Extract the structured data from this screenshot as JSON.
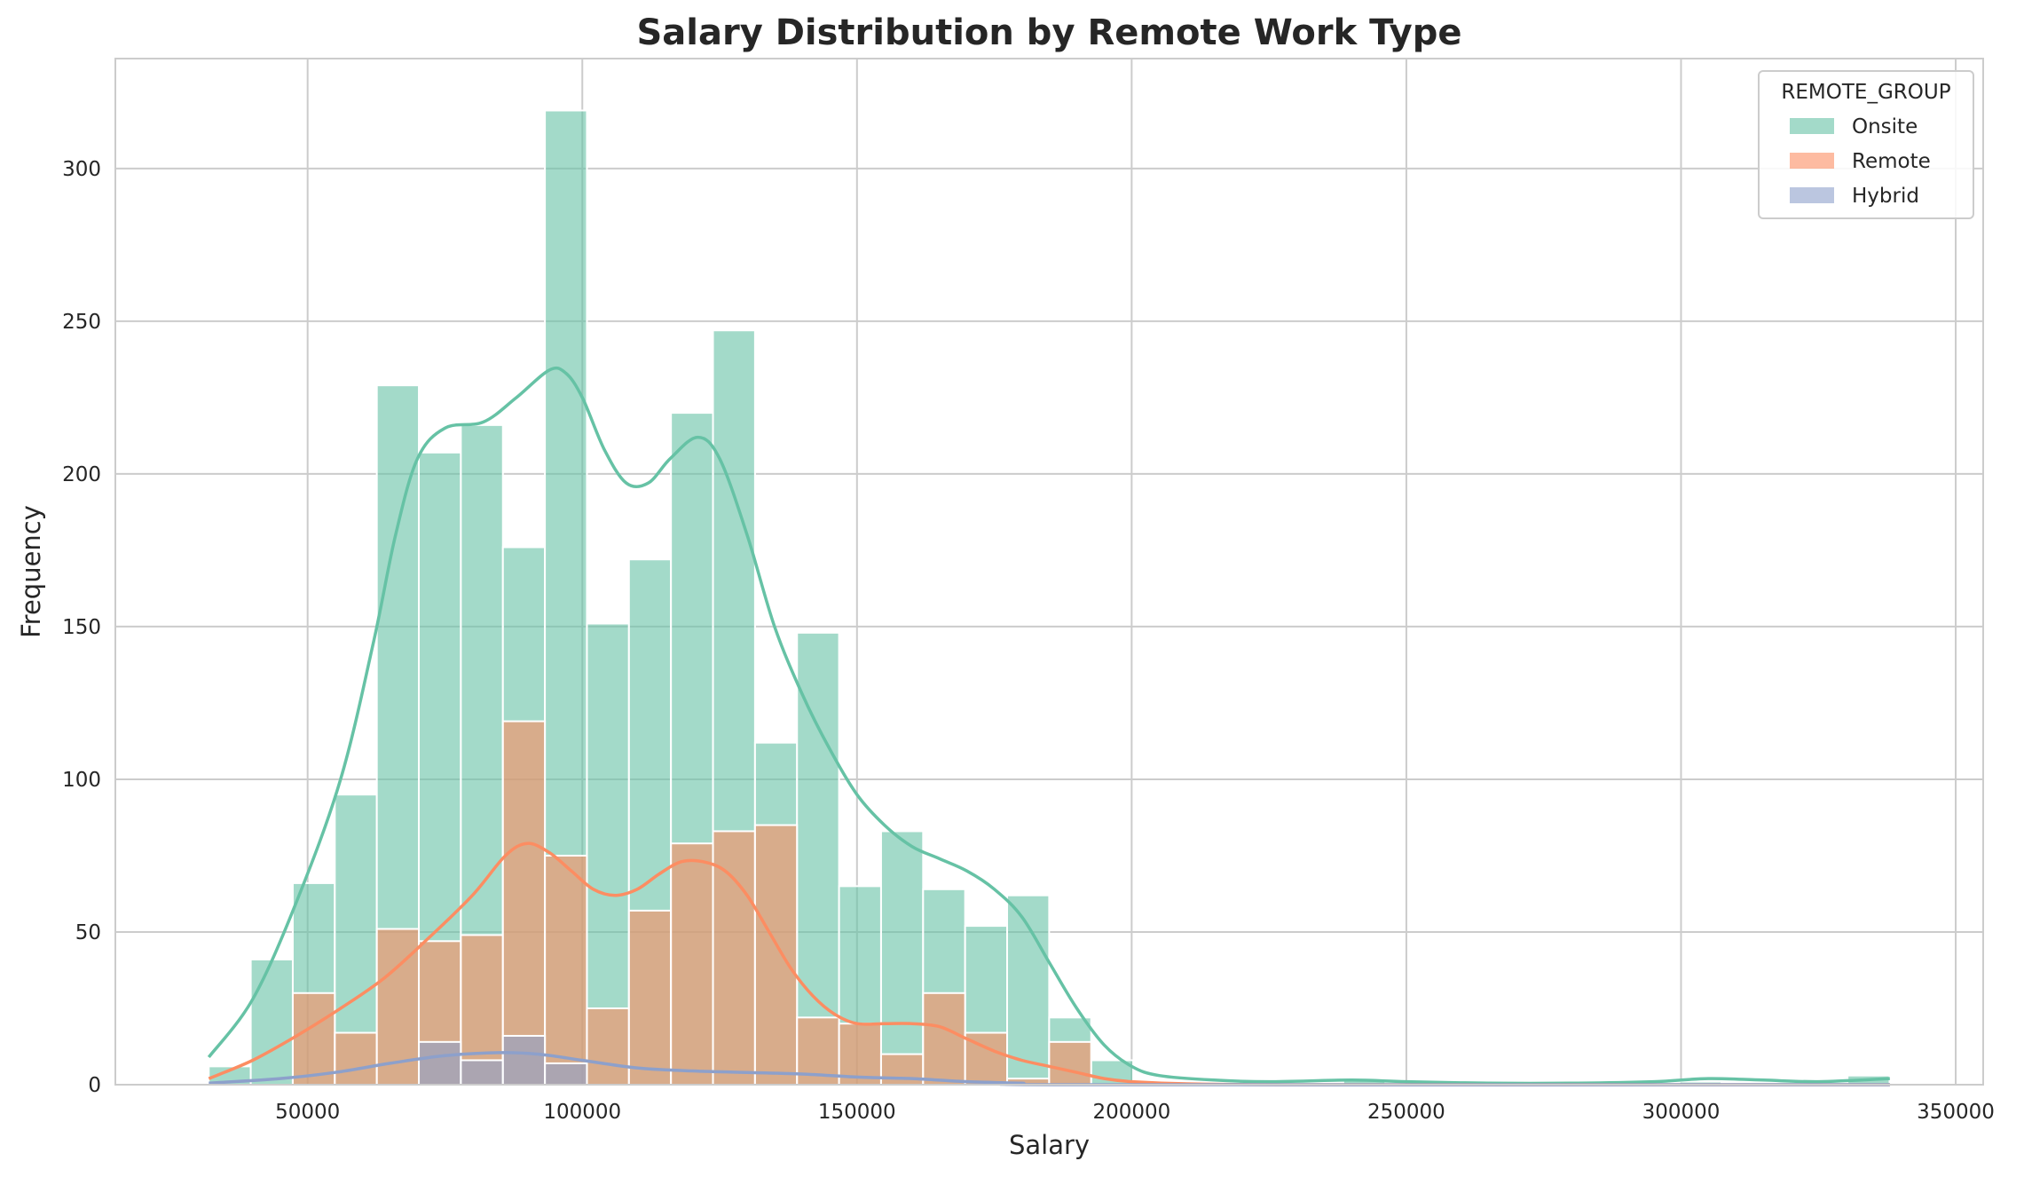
{
  "chart_data": {
    "type": "histogram",
    "title": "Salary Distribution by Remote Work Type",
    "xlabel": "Salary",
    "ylabel": "Frequency",
    "xlim": [
      15000,
      355000
    ],
    "ylim": [
      0,
      336
    ],
    "xticks": [
      50000,
      100000,
      150000,
      200000,
      250000,
      300000,
      350000
    ],
    "xtick_labels": [
      "50000",
      "100000",
      "150000",
      "200000",
      "250000",
      "300000",
      "350000"
    ],
    "yticks": [
      0,
      50,
      100,
      150,
      200,
      250,
      300
    ],
    "ytick_labels": [
      "0",
      "50",
      "100",
      "150",
      "200",
      "250",
      "300"
    ],
    "grid": true,
    "legend": {
      "title": "REMOTE_GROUP",
      "placement": "top-right"
    },
    "bin_edges": [
      32000,
      39649,
      47298,
      54947,
      62596,
      70245,
      77894,
      85543,
      93192,
      100841,
      108490,
      116139,
      123788,
      131437,
      139086,
      146735,
      154384,
      162033,
      169682,
      177331,
      184980,
      192629,
      200278,
      207927,
      215576,
      223225,
      230874,
      238523,
      246172,
      253821,
      261470,
      269119,
      276768,
      284417,
      292066,
      299715,
      307364,
      315013,
      322662,
      330311,
      337960
    ],
    "series": [
      {
        "name": "Onsite",
        "color": "#66c2a5",
        "counts": [
          6,
          41,
          66,
          95,
          229,
          207,
          216,
          176,
          319,
          151,
          172,
          220,
          247,
          112,
          148,
          65,
          83,
          64,
          52,
          62,
          22,
          8,
          0,
          0,
          0,
          0,
          0,
          2,
          0,
          0,
          0,
          0,
          0,
          0,
          0,
          1,
          0,
          0,
          0,
          3
        ],
        "kde": [
          [
            32000,
            9
          ],
          [
            40000,
            28
          ],
          [
            48000,
            60
          ],
          [
            56000,
            100
          ],
          [
            62000,
            145
          ],
          [
            66000,
            180
          ],
          [
            70000,
            205
          ],
          [
            75000,
            215
          ],
          [
            82000,
            217
          ],
          [
            88000,
            225
          ],
          [
            94000,
            234
          ],
          [
            97000,
            233
          ],
          [
            100000,
            225
          ],
          [
            104000,
            208
          ],
          [
            108000,
            197
          ],
          [
            112000,
            197
          ],
          [
            116000,
            205
          ],
          [
            121000,
            212
          ],
          [
            125000,
            205
          ],
          [
            130000,
            180
          ],
          [
            135000,
            150
          ],
          [
            140000,
            128
          ],
          [
            145000,
            110
          ],
          [
            150000,
            95
          ],
          [
            155000,
            85
          ],
          [
            160000,
            78
          ],
          [
            165000,
            74
          ],
          [
            170000,
            70
          ],
          [
            175000,
            64
          ],
          [
            180000,
            55
          ],
          [
            185000,
            40
          ],
          [
            190000,
            25
          ],
          [
            195000,
            13
          ],
          [
            200000,
            6
          ],
          [
            205000,
            3
          ],
          [
            215000,
            1.5
          ],
          [
            225000,
            1
          ],
          [
            240000,
            1.5
          ],
          [
            250000,
            1
          ],
          [
            265000,
            0.5
          ],
          [
            280000,
            0.5
          ],
          [
            295000,
            1
          ],
          [
            305000,
            2
          ],
          [
            315000,
            1.5
          ],
          [
            325000,
            1
          ],
          [
            338000,
            2
          ]
        ]
      },
      {
        "name": "Remote",
        "color": "#fc8d62",
        "counts": [
          0,
          0,
          30,
          17,
          51,
          47,
          49,
          119,
          75,
          25,
          57,
          79,
          83,
          85,
          22,
          20,
          10,
          30,
          17,
          2,
          14,
          0,
          0,
          0,
          0,
          0,
          0,
          0,
          0,
          0,
          0,
          0,
          0,
          0,
          0,
          0,
          0,
          0,
          0,
          0
        ],
        "kde": [
          [
            32000,
            2
          ],
          [
            40000,
            8
          ],
          [
            48000,
            16
          ],
          [
            56000,
            25
          ],
          [
            64000,
            35
          ],
          [
            72000,
            48
          ],
          [
            80000,
            62
          ],
          [
            86000,
            75
          ],
          [
            90000,
            79
          ],
          [
            94000,
            76
          ],
          [
            98000,
            70
          ],
          [
            102000,
            64
          ],
          [
            106000,
            62
          ],
          [
            110000,
            64
          ],
          [
            114000,
            69
          ],
          [
            118000,
            73
          ],
          [
            122000,
            73
          ],
          [
            126000,
            70
          ],
          [
            130000,
            62
          ],
          [
            134000,
            50
          ],
          [
            138000,
            38
          ],
          [
            142000,
            29
          ],
          [
            146000,
            23
          ],
          [
            150000,
            20
          ],
          [
            155000,
            20
          ],
          [
            160000,
            20
          ],
          [
            165000,
            19
          ],
          [
            170000,
            15
          ],
          [
            175000,
            11
          ],
          [
            180000,
            8
          ],
          [
            185000,
            6
          ],
          [
            190000,
            4
          ],
          [
            195000,
            2
          ],
          [
            200000,
            1
          ],
          [
            210000,
            0.3
          ],
          [
            230000,
            0
          ],
          [
            300000,
            0
          ],
          [
            338000,
            0
          ]
        ]
      },
      {
        "name": "Hybrid",
        "color": "#8da0cb",
        "counts": [
          0,
          0,
          0,
          0,
          0,
          14,
          8,
          16,
          7,
          0,
          0,
          0,
          0,
          0,
          0,
          0,
          0,
          0,
          0,
          0,
          0,
          0,
          0,
          0,
          0,
          0,
          0,
          0,
          0,
          0,
          0,
          0,
          0,
          0,
          0,
          0,
          0,
          0,
          0,
          0
        ],
        "kde": [
          [
            32000,
            0.5
          ],
          [
            45000,
            2
          ],
          [
            55000,
            4
          ],
          [
            65000,
            7
          ],
          [
            75000,
            9.5
          ],
          [
            85000,
            10.5
          ],
          [
            92000,
            10
          ],
          [
            100000,
            8
          ],
          [
            110000,
            5.5
          ],
          [
            120000,
            4.5
          ],
          [
            130000,
            4
          ],
          [
            140000,
            3.5
          ],
          [
            150000,
            2.5
          ],
          [
            160000,
            2
          ],
          [
            170000,
            1
          ],
          [
            180000,
            0.5
          ],
          [
            190000,
            0
          ],
          [
            338000,
            0
          ]
        ]
      }
    ]
  }
}
